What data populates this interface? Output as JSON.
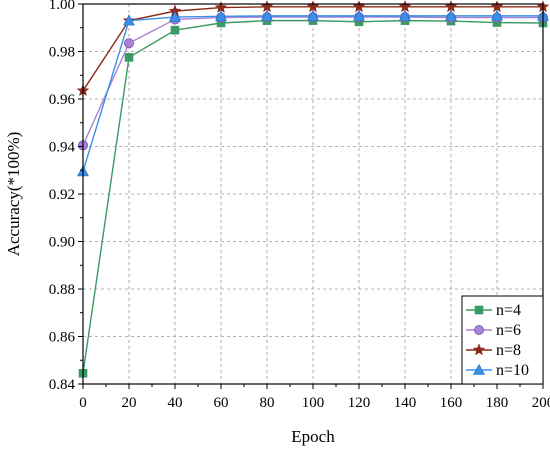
{
  "chart_data": {
    "type": "line",
    "title": "",
    "xlabel": "Epoch",
    "ylabel": "Accuracy(*100%)",
    "xlim": [
      0,
      200
    ],
    "ylim": [
      0.84,
      1.0
    ],
    "x_ticks": [
      "0",
      "20",
      "40",
      "60",
      "80",
      "100",
      "120",
      "140",
      "160",
      "180",
      "200"
    ],
    "y_ticks": [
      "0.84",
      "0.86",
      "0.88",
      "0.90",
      "0.92",
      "0.94",
      "0.96",
      "0.98",
      "1.00"
    ],
    "grid": true,
    "legend_position": "bottom-right",
    "x": [
      0,
      20,
      40,
      60,
      80,
      100,
      120,
      140,
      160,
      180,
      200
    ],
    "series": [
      {
        "name": "n=4",
        "marker": "square",
        "color": "#3a9a62",
        "values": [
          0.8445,
          0.9775,
          0.989,
          0.992,
          0.993,
          0.993,
          0.9925,
          0.993,
          0.9928,
          0.9922,
          0.992
        ]
      },
      {
        "name": "n=6",
        "marker": "circle",
        "color": "#a982d8",
        "values": [
          0.9405,
          0.9835,
          0.9935,
          0.9943,
          0.9945,
          0.9945,
          0.9945,
          0.9945,
          0.9943,
          0.9943,
          0.9943
        ]
      },
      {
        "name": "n=8",
        "marker": "star",
        "color": "#8b2b1a",
        "values": [
          0.9635,
          0.993,
          0.997,
          0.9985,
          0.9988,
          0.9988,
          0.9988,
          0.9988,
          0.9988,
          0.9988,
          0.9988
        ]
      },
      {
        "name": "n=10",
        "marker": "triangle",
        "color": "#3a8fe6",
        "values": [
          0.9295,
          0.993,
          0.9945,
          0.9948,
          0.995,
          0.995,
          0.995,
          0.995,
          0.995,
          0.995,
          0.995
        ]
      }
    ]
  }
}
